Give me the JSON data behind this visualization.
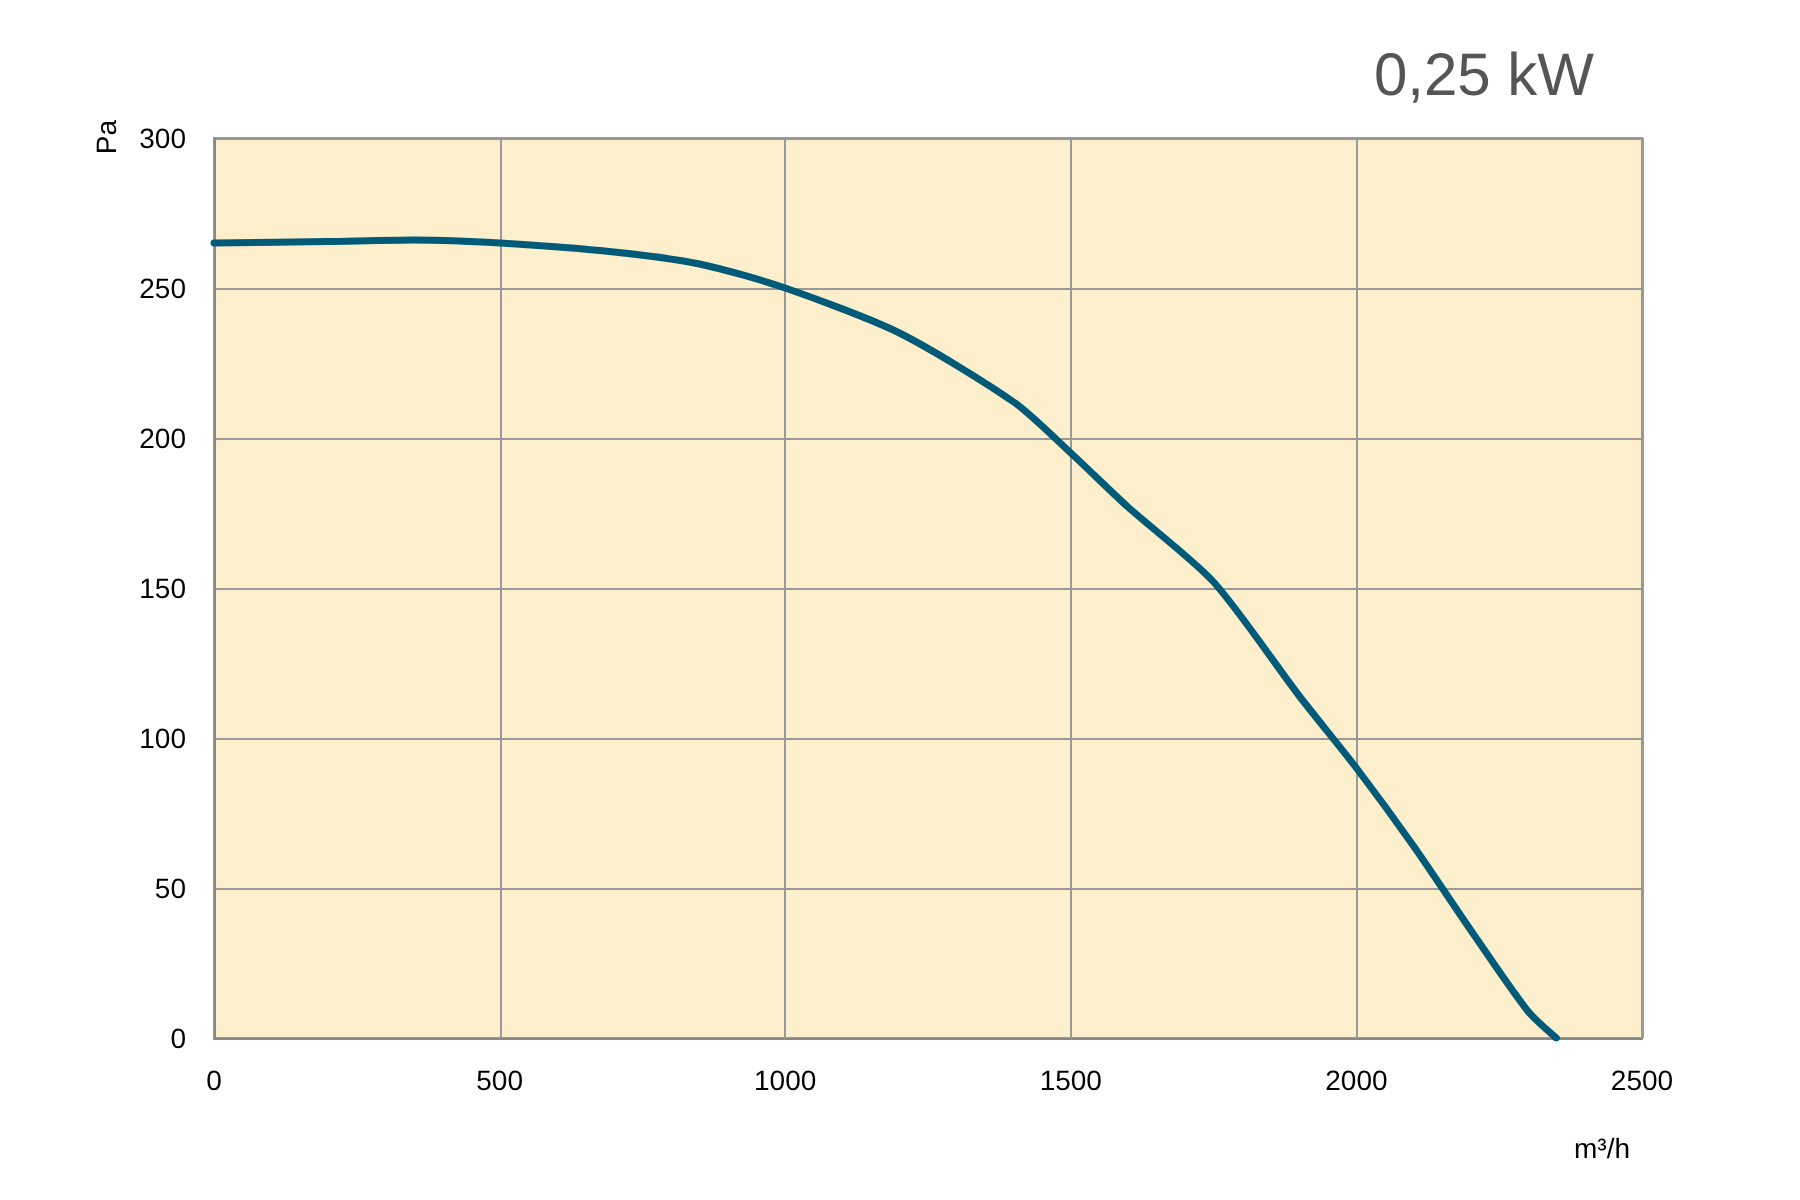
{
  "chart_data": {
    "type": "line",
    "title": "0,25 kW",
    "xlabel": "m³/h",
    "ylabel": "Pa",
    "x": [
      0,
      200,
      350,
      500,
      700,
      850,
      1000,
      1200,
      1400,
      1500,
      1600,
      1750,
      1900,
      2000,
      2100,
      2200,
      2300,
      2350
    ],
    "series": [
      {
        "color": "#005a78",
        "values": [
          265,
          265.5,
          266,
          265,
          262,
          258,
          250,
          235,
          212,
          195,
          177,
          152,
          114,
          90,
          64,
          36,
          9,
          0
        ]
      }
    ],
    "xlim": [
      0,
      2500
    ],
    "xticks": [
      0,
      500,
      1000,
      1500,
      2000,
      2500
    ],
    "ylim": [
      0,
      300
    ],
    "yticks": [
      0,
      50,
      100,
      150,
      200,
      250,
      300
    ],
    "grid": true,
    "marker": "none",
    "line_style": "solid"
  }
}
